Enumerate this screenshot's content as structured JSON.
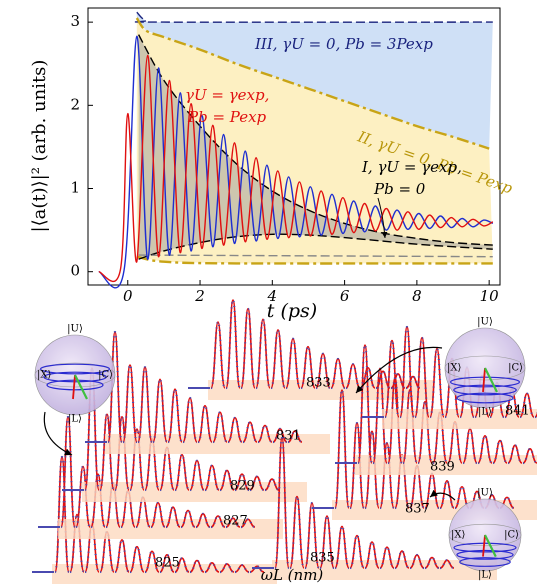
{
  "chart_data": [
    {
      "type": "line",
      "x_label": "t (ps)",
      "y_label": "|⟨a(t)⟩|² (arb. units)",
      "xlim": [
        -1.1,
        10.3
      ],
      "xticks": [
        0,
        2,
        4,
        6,
        8,
        10
      ],
      "ylim": [
        -0.16,
        3.17
      ],
      "yticks": [
        0,
        1,
        2,
        3
      ],
      "annotations": [
        {
          "text": "III, γU = 0, Pb = 3Pexp",
          "color": "#1a237e"
        },
        {
          "text": "γU = γexp,",
          "color": "#e01010"
        },
        {
          "text": "Pb = Pexp",
          "color": "#e01010"
        },
        {
          "text": "II, γU = 0, Pb = Pexp",
          "color": "#b8960a"
        },
        {
          "text": "I, γU = γexp,",
          "color": "#000000"
        },
        {
          "text": "Pb = 0",
          "color": "#000000"
        }
      ],
      "series": [
        {
          "color": "#1a237e",
          "style": "dashed",
          "fill": "#cfe0f6",
          "x": [
            0.25,
            0.5,
            1,
            10.1
          ],
          "values": [
            3.12,
            3.02,
            3.0,
            3.0
          ]
        },
        {
          "color": "#c8a416",
          "style": "dashdot",
          "fill": "#fdf0c2",
          "x": [
            0.25,
            0.5,
            1,
            2,
            3,
            4,
            5,
            6,
            7,
            8,
            9,
            10
          ],
          "values": [
            3.05,
            2.9,
            2.82,
            2.67,
            2.5,
            2.35,
            2.2,
            2.05,
            1.9,
            1.75,
            1.62,
            1.48
          ]
        },
        {
          "color": "#c8a416",
          "style": "dashdot",
          "x": [
            0.25,
            1,
            3,
            10.1
          ],
          "values": [
            0.18,
            0.12,
            0.1,
            0.1
          ]
        },
        {
          "color": "#000000",
          "style": "dashed",
          "fill": "#cdc6ae",
          "x": [
            0.3,
            1,
            2,
            3,
            4,
            5,
            6,
            7,
            8,
            9,
            10.1
          ],
          "values": [
            2.85,
            2.3,
            1.75,
            1.3,
            0.97,
            0.74,
            0.58,
            0.47,
            0.4,
            0.35,
            0.32
          ]
        },
        {
          "color": "#000000",
          "style": "dashed",
          "x": [
            0.3,
            1,
            2,
            3,
            4,
            5,
            6,
            7,
            8,
            9,
            10.1
          ],
          "values": [
            0.15,
            0.25,
            0.35,
            0.42,
            0.45,
            0.44,
            0.41,
            0.37,
            0.33,
            0.3,
            0.27
          ]
        },
        {
          "color": "#888888",
          "style": "dashed",
          "x": [
            0.3,
            10.1
          ],
          "values": [
            0.2,
            0.18
          ]
        },
        {
          "color": "#1f2fd0",
          "style": "solid",
          "x": [
            -0.8,
            -0.1,
            0.25,
            0.55,
            0.85,
            1.15,
            1.45,
            1.75,
            2.05,
            2.35,
            2.65,
            2.95,
            3.25,
            3.55,
            3.85,
            4.15,
            4.45,
            4.75,
            5.05,
            5.35,
            5.65,
            5.95,
            6.25,
            6.55,
            6.85,
            7.15,
            7.45,
            7.75,
            8.05,
            8.35,
            8.65,
            8.95,
            9.25,
            9.55,
            9.85,
            10.1
          ],
          "values": [
            0,
            0.02,
            2.83,
            0.15,
            2.45,
            0.2,
            2.15,
            0.25,
            1.88,
            0.3,
            1.65,
            0.34,
            1.45,
            0.37,
            1.28,
            0.4,
            1.14,
            0.42,
            1.02,
            0.44,
            0.93,
            0.46,
            0.85,
            0.48,
            0.79,
            0.5,
            0.74,
            0.51,
            0.7,
            0.52,
            0.67,
            0.53,
            0.64,
            0.54,
            0.62,
            0.58
          ]
        },
        {
          "color": "#e01010",
          "style": "solid",
          "x": [
            -0.8,
            -0.2,
            0.0,
            0.25,
            0.55,
            0.85,
            1.15,
            1.45,
            1.75,
            2.05,
            2.35,
            2.65,
            2.95,
            3.25,
            3.55,
            3.85,
            4.15,
            4.45,
            4.75,
            5.05,
            5.35,
            5.65,
            5.95,
            6.25,
            6.55,
            6.85,
            7.15,
            7.45,
            7.75,
            8.05,
            8.35,
            8.65,
            8.95,
            9.25,
            9.55,
            9.85,
            10.1
          ],
          "values": [
            0,
            0.03,
            1.9,
            0.12,
            2.6,
            0.18,
            2.3,
            0.23,
            2.02,
            0.28,
            1.76,
            0.32,
            1.55,
            0.36,
            1.37,
            0.39,
            1.21,
            0.41,
            1.08,
            0.43,
            0.97,
            0.45,
            0.89,
            0.47,
            0.82,
            0.49,
            0.76,
            0.5,
            0.72,
            0.51,
            0.68,
            0.53,
            0.65,
            0.54,
            0.63,
            0.55,
            0.6
          ]
        }
      ]
    },
    {
      "type": "waterfall",
      "x_label": "ωL (nm)",
      "series": [
        {
          "name": "825",
          "values": [
            1,
            0.5,
            0.42,
            0.35,
            0.28,
            0.22,
            0.18,
            0.15,
            0.12,
            0.1,
            0.08,
            0.07,
            0.06,
            0.05
          ]
        },
        {
          "name": "827",
          "values": [
            1,
            0.55,
            0.48,
            0.4,
            0.33,
            0.27,
            0.22,
            0.18,
            0.15,
            0.12,
            0.1,
            0.08,
            0.07
          ]
        },
        {
          "name": "829",
          "values": [
            1,
            0.62,
            0.6,
            0.5,
            0.42,
            0.35,
            0.29,
            0.24,
            0.2,
            0.16,
            0.13,
            0.11,
            0.09
          ]
        },
        {
          "name": "831",
          "values": [
            1,
            0.7,
            0.68,
            0.57,
            0.48,
            0.4,
            0.33,
            0.27,
            0.22,
            0.18,
            0.15,
            0.12,
            0.1
          ]
        },
        {
          "name": "833",
          "values": [
            0.75,
            1,
            0.9,
            0.78,
            0.66,
            0.56,
            0.47,
            0.39,
            0.33,
            0.27,
            0.23,
            0.19,
            0.16,
            0.13
          ]
        },
        {
          "name": "835",
          "values": [
            1,
            0.55,
            0.5,
            0.4,
            0.32,
            0.25,
            0.2,
            0.16,
            0.13,
            0.1,
            0.08,
            0.06
          ]
        },
        {
          "name": "837",
          "values": [
            1,
            0.72,
            0.65,
            0.55,
            0.45,
            0.36,
            0.29,
            0.23,
            0.18,
            0.14,
            0.11,
            0.09
          ]
        },
        {
          "name": "839",
          "values": [
            1,
            0.8,
            0.72,
            0.62,
            0.52,
            0.43,
            0.35,
            0.29,
            0.23,
            0.19,
            0.15,
            0.12
          ]
        },
        {
          "name": "841",
          "values": [
            0.85,
            1,
            0.88,
            0.76,
            0.65,
            0.55,
            0.46,
            0.38,
            0.31,
            0.26,
            0.21,
            0.17,
            0.14
          ]
        }
      ],
      "bloch_spheres": [
        {
          "labels": [
            "|U⟩",
            "|X⟩",
            "|C⟩",
            "|L⟩"
          ]
        },
        {
          "labels": [
            "|U⟩",
            "|X⟩",
            "|C⟩",
            "|L⟩"
          ]
        },
        {
          "labels": [
            "|U⟩",
            "|X⟩",
            "|C⟩",
            "|L⟩"
          ]
        }
      ]
    }
  ]
}
